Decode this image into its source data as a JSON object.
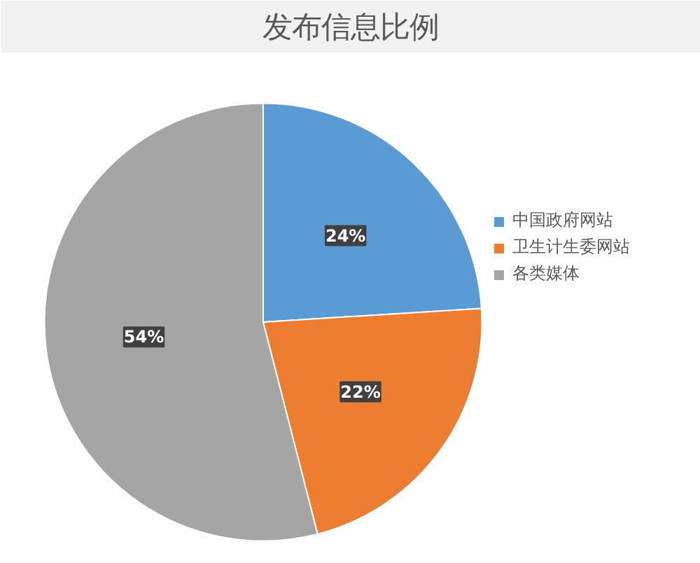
{
  "chart_data": {
    "type": "pie",
    "title": "发布信息比例",
    "categories": [
      "中国政府网站",
      "卫生计生委网站",
      "各类媒体"
    ],
    "values": [
      24,
      22,
      54
    ],
    "colors": [
      "#5b9bd5",
      "#ed7d31",
      "#a5a5a5"
    ],
    "value_labels": [
      "24%",
      "22%",
      "54%"
    ],
    "legend": "right"
  }
}
